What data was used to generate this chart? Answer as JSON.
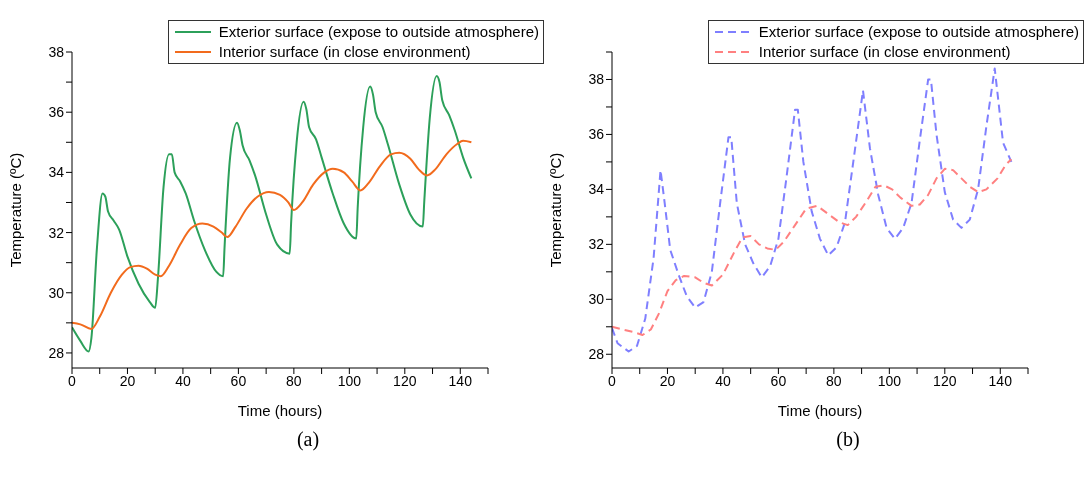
{
  "chart_data": [
    {
      "type": "line",
      "xlabel": "Time (hours)",
      "ylabel": "Temperature (ºC)",
      "annotations": [
        "(a)"
      ],
      "legend": "top right",
      "line_style": "solid",
      "marker": "none",
      "xlim": [
        0,
        150
      ],
      "xticks": [
        0,
        {
          "value": 10,
          "label": null
        },
        20,
        {
          "value": 30,
          "label": null
        },
        40,
        {
          "value": 50,
          "label": null
        },
        60,
        {
          "value": 70,
          "label": null
        },
        80,
        {
          "value": 90,
          "label": null
        },
        100,
        {
          "value": 110,
          "label": null
        },
        120,
        {
          "value": 130,
          "label": null
        },
        140,
        {
          "value": 150,
          "label": null
        }
      ],
      "ylim": [
        27.5,
        38
      ],
      "yticks": [
        28,
        {
          "value": 29,
          "label": null
        },
        30,
        {
          "value": 31,
          "label": null
        },
        32,
        {
          "value": 33,
          "label": null
        },
        34,
        {
          "value": 35,
          "label": null
        },
        36,
        {
          "value": 37,
          "label": null
        },
        38
      ],
      "series": [
        {
          "name": "Exterior surface (expose to outside atmosphere)",
          "color": "#2ca05a",
          "x": [
            0,
            3,
            6,
            7,
            9,
            11,
            12,
            13,
            15,
            17,
            20,
            24,
            28,
            30,
            31,
            33,
            35,
            36,
            37,
            39,
            41,
            44,
            48,
            52,
            54.5,
            55,
            57,
            59.5,
            60.5,
            61.5,
            64,
            66,
            70,
            74,
            78.5,
            79,
            81,
            83.5,
            84.5,
            85.5,
            88,
            90,
            94,
            98,
            102.5,
            103,
            105,
            107.5,
            108.5,
            109.5,
            112,
            114,
            118,
            122,
            126.5,
            127,
            129,
            131.5,
            132.5,
            133.5,
            136,
            138,
            141,
            144
          ],
          "values": [
            28.85,
            28.4,
            28.05,
            28.5,
            31.5,
            33.3,
            33.2,
            32.7,
            32.4,
            32.1,
            31.2,
            30.3,
            29.7,
            29.5,
            30.5,
            33.5,
            34.6,
            34.6,
            34.0,
            33.7,
            33.3,
            32.4,
            31.4,
            30.7,
            30.55,
            31.5,
            34.5,
            35.65,
            35.4,
            34.9,
            34.4,
            33.9,
            32.6,
            31.6,
            31.3,
            32.3,
            35.0,
            36.35,
            36.1,
            35.5,
            35.1,
            34.5,
            33.3,
            32.3,
            31.8,
            32.8,
            35.5,
            36.85,
            36.6,
            36.0,
            35.5,
            34.9,
            33.6,
            32.6,
            32.2,
            33.0,
            35.8,
            37.2,
            37.0,
            36.4,
            35.9,
            35.4,
            34.5,
            33.8
          ]
        },
        {
          "name": "Interior surface (in close environment)",
          "color": "#f26b1d",
          "x": [
            0,
            3,
            7,
            10,
            14,
            18,
            21,
            24,
            27,
            30,
            32,
            35,
            39,
            43,
            47,
            51,
            54,
            56,
            59,
            63,
            67,
            71,
            75,
            78,
            80,
            83,
            87,
            91,
            94,
            98,
            101,
            104,
            107,
            111,
            115,
            118,
            122,
            125,
            128,
            131,
            135,
            139,
            141,
            144
          ],
          "values": [
            29.0,
            28.95,
            28.8,
            29.2,
            30.0,
            30.6,
            30.85,
            30.9,
            30.8,
            30.6,
            30.55,
            30.9,
            31.6,
            32.15,
            32.3,
            32.2,
            32.0,
            31.85,
            32.2,
            32.8,
            33.2,
            33.35,
            33.25,
            33.0,
            32.75,
            33.0,
            33.6,
            34.0,
            34.12,
            34.0,
            33.7,
            33.4,
            33.65,
            34.2,
            34.6,
            34.65,
            34.45,
            34.1,
            33.9,
            34.1,
            34.6,
            34.95,
            35.05,
            35.0
          ]
        }
      ]
    },
    {
      "type": "line",
      "xlabel": "Time (hours)",
      "ylabel": "Temperature (ºC)",
      "annotations": [
        "(b)"
      ],
      "legend": "top right",
      "line_style": "dashed",
      "marker": "none",
      "xlim": [
        0,
        150
      ],
      "xticks": [
        0,
        {
          "value": 10,
          "label": null
        },
        20,
        {
          "value": 30,
          "label": null
        },
        40,
        {
          "value": 50,
          "label": null
        },
        60,
        {
          "value": 70,
          "label": null
        },
        80,
        {
          "value": 90,
          "label": null
        },
        100,
        {
          "value": 110,
          "label": null
        },
        120,
        {
          "value": 130,
          "label": null
        },
        140,
        {
          "value": 150,
          "label": null
        }
      ],
      "ylim": [
        27.5,
        39
      ],
      "yticks": [
        28,
        {
          "value": 29,
          "label": null
        },
        30,
        {
          "value": 31,
          "label": null
        },
        32,
        {
          "value": 33,
          "label": null
        },
        34,
        {
          "value": 35,
          "label": null
        },
        36,
        {
          "value": 37,
          "label": null
        },
        38,
        {
          "value": 39,
          "label": null
        }
      ],
      "series": [
        {
          "name": "Exterior surface (expose to outside atmosphere)",
          "color": "#7f7fff",
          "x": [
            0,
            2,
            6,
            9,
            12,
            15,
            17.5,
            19,
            21,
            24,
            27,
            30,
            33,
            36,
            39,
            42,
            43,
            45,
            48,
            51,
            54,
            57,
            60,
            63,
            66,
            67,
            69,
            72,
            75,
            78,
            81,
            84,
            87,
            90.5,
            93,
            96,
            99,
            102,
            105,
            108,
            111,
            114,
            115,
            117,
            120,
            123,
            126,
            129,
            132,
            135,
            138,
            141,
            144
          ],
          "values": [
            28.95,
            28.4,
            28.1,
            28.3,
            29.3,
            31.5,
            34.7,
            33.5,
            31.8,
            30.9,
            30.1,
            29.7,
            29.9,
            31.0,
            33.5,
            35.9,
            35.9,
            33.5,
            32.0,
            31.3,
            30.8,
            31.2,
            32.2,
            34.5,
            36.9,
            36.9,
            35.0,
            33.2,
            32.2,
            31.6,
            31.9,
            32.8,
            35.0,
            37.6,
            35.5,
            33.8,
            32.6,
            32.2,
            32.6,
            33.5,
            35.8,
            38.0,
            38.0,
            36.0,
            33.9,
            32.9,
            32.6,
            32.9,
            34.0,
            36.3,
            38.4,
            35.7,
            35.0
          ]
        },
        {
          "name": "Interior surface (in close environment)",
          "color": "#ff8080",
          "x": [
            0,
            4,
            8,
            11,
            14,
            17,
            20,
            23,
            26,
            30,
            33,
            36,
            40,
            44,
            47,
            50,
            53,
            56,
            59,
            62,
            66,
            70,
            74,
            78,
            82,
            85,
            88,
            92,
            95,
            98,
            101,
            104,
            108,
            111,
            114,
            117,
            120,
            123,
            126,
            129,
            132,
            135,
            139,
            142,
            144
          ],
          "values": [
            29.0,
            28.9,
            28.8,
            28.7,
            28.9,
            29.5,
            30.3,
            30.7,
            30.85,
            30.8,
            30.6,
            30.5,
            30.9,
            31.7,
            32.25,
            32.3,
            32.0,
            31.85,
            31.8,
            32.1,
            32.7,
            33.3,
            33.4,
            33.1,
            32.8,
            32.7,
            33.0,
            33.6,
            34.1,
            34.15,
            34.0,
            33.7,
            33.4,
            33.45,
            33.8,
            34.4,
            34.75,
            34.7,
            34.4,
            34.1,
            33.9,
            34.0,
            34.4,
            34.9,
            35.1
          ]
        }
      ]
    }
  ]
}
